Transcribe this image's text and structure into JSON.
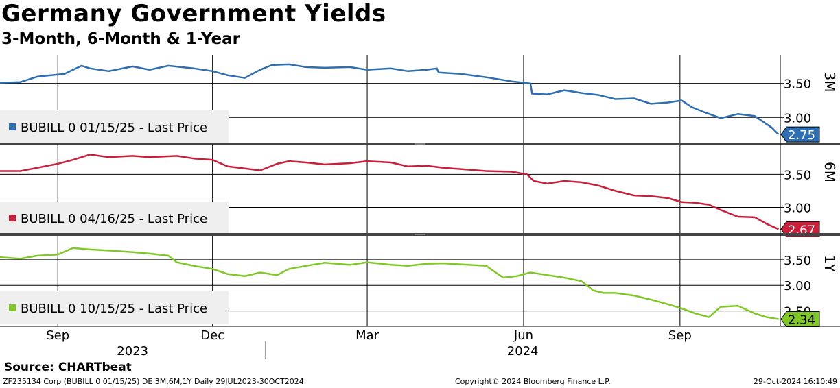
{
  "header": {
    "title": "Germany Government Yields",
    "subtitle": "3-Month, 6-Month & 1-Year"
  },
  "footer": {
    "source": "Source: CHARTbeat",
    "ticker_info": "ZF235134 Corp (BUBILL 0 01/15/25) DE 3M,6M,1Y  Daily 29JUL2023-30OCT2024",
    "copyright": "Copyright© 2024 Bloomberg Finance L.P.",
    "timestamp": "29-Oct-2024 16:10:49"
  },
  "chart_data": {
    "type": "line",
    "x_range": [
      "2023-07-29",
      "2024-10-30"
    ],
    "x_tick_labels": [
      "Sep",
      "Dec",
      "Mar",
      "Jun",
      "Sep"
    ],
    "x_tick_dates": [
      "2023-09-01",
      "2023-12-01",
      "2024-03-01",
      "2024-06-01",
      "2024-09-01"
    ],
    "x_year_labels": [
      "2023",
      "2024"
    ],
    "year_separator_date": "2024-01-01",
    "grid": true,
    "legend_position": "left",
    "panels": [
      {
        "axis_label": "3M",
        "legend": "BUBILL 0 01/15/25 - Last Price",
        "color": "#2f6eb1",
        "last_value": "2.75",
        "yticks": [
          "3.50",
          "3.00"
        ],
        "ytick_values": [
          3.5,
          3.0
        ],
        "ylim": [
          2.62,
          3.92
        ],
        "series": {
          "name": "BUBILL 0 01/15/25 - Last Price",
          "x": [
            "2023-07-29",
            "2023-08-10",
            "2023-08-20",
            "2023-08-28",
            "2023-09-05",
            "2023-09-15",
            "2023-09-20",
            "2023-10-01",
            "2023-10-15",
            "2023-10-25",
            "2023-11-05",
            "2023-11-20",
            "2023-12-01",
            "2023-12-10",
            "2023-12-20",
            "2023-12-29",
            "2024-01-05",
            "2024-01-15",
            "2024-01-25",
            "2024-02-05",
            "2024-02-20",
            "2024-03-01",
            "2024-03-15",
            "2024-03-25",
            "2024-04-05",
            "2024-04-11",
            "2024-04-12",
            "2024-04-25",
            "2024-05-10",
            "2024-05-25",
            "2024-06-05",
            "2024-06-06",
            "2024-06-15",
            "2024-06-25",
            "2024-07-05",
            "2024-07-15",
            "2024-07-25",
            "2024-08-05",
            "2024-08-15",
            "2024-08-25",
            "2024-09-02",
            "2024-09-08",
            "2024-09-15",
            "2024-09-25",
            "2024-10-05",
            "2024-10-15",
            "2024-10-25",
            "2024-10-29"
          ],
          "values": [
            3.51,
            3.52,
            3.6,
            3.62,
            3.64,
            3.76,
            3.72,
            3.68,
            3.75,
            3.7,
            3.76,
            3.72,
            3.68,
            3.62,
            3.58,
            3.7,
            3.77,
            3.78,
            3.74,
            3.73,
            3.74,
            3.7,
            3.72,
            3.68,
            3.7,
            3.72,
            3.66,
            3.64,
            3.59,
            3.53,
            3.5,
            3.35,
            3.34,
            3.4,
            3.36,
            3.33,
            3.27,
            3.28,
            3.2,
            3.22,
            3.25,
            3.15,
            3.08,
            2.99,
            3.05,
            3.02,
            2.85,
            2.75
          ]
        }
      },
      {
        "axis_label": "6M",
        "legend": "BUBILL 0 04/16/25 - Last Price",
        "color": "#c8203a",
        "last_value": "2.67",
        "yticks": [
          "3.50",
          "3.00"
        ],
        "ytick_values": [
          3.5,
          3.0
        ],
        "ylim": [
          2.6,
          3.95
        ],
        "series": {
          "name": "BUBILL 0 04/16/25 - Last Price",
          "x": [
            "2023-07-29",
            "2023-08-10",
            "2023-08-20",
            "2023-09-01",
            "2023-09-10",
            "2023-09-20",
            "2023-10-01",
            "2023-10-15",
            "2023-10-25",
            "2023-11-10",
            "2023-11-20",
            "2023-12-01",
            "2023-12-10",
            "2023-12-20",
            "2023-12-29",
            "2024-01-08",
            "2024-01-15",
            "2024-01-25",
            "2024-02-05",
            "2024-02-20",
            "2024-03-01",
            "2024-03-15",
            "2024-03-25",
            "2024-04-05",
            "2024-04-15",
            "2024-04-25",
            "2024-05-10",
            "2024-05-25",
            "2024-06-03",
            "2024-06-07",
            "2024-06-15",
            "2024-06-25",
            "2024-07-05",
            "2024-07-15",
            "2024-07-25",
            "2024-08-05",
            "2024-08-15",
            "2024-08-25",
            "2024-09-02",
            "2024-09-10",
            "2024-09-18",
            "2024-09-25",
            "2024-10-05",
            "2024-10-15",
            "2024-10-22",
            "2024-10-29"
          ],
          "values": [
            3.55,
            3.55,
            3.6,
            3.66,
            3.72,
            3.8,
            3.76,
            3.78,
            3.76,
            3.78,
            3.74,
            3.72,
            3.62,
            3.59,
            3.56,
            3.66,
            3.7,
            3.68,
            3.65,
            3.67,
            3.7,
            3.68,
            3.62,
            3.63,
            3.6,
            3.58,
            3.55,
            3.54,
            3.5,
            3.4,
            3.36,
            3.4,
            3.38,
            3.33,
            3.25,
            3.18,
            3.17,
            3.14,
            3.08,
            3.07,
            3.04,
            2.96,
            2.86,
            2.85,
            2.75,
            2.67
          ]
        }
      },
      {
        "axis_label": "1Y",
        "legend": "BUBILL 0 10/15/25 - Last Price",
        "color": "#80c828",
        "last_value": "2.34",
        "yticks": [
          "3.50",
          "3.00",
          "2.50"
        ],
        "ytick_values": [
          3.5,
          3.0,
          2.5
        ],
        "ylim": [
          2.2,
          3.98
        ],
        "series": {
          "name": "BUBILL 0 10/15/25 - Last Price",
          "x": [
            "2023-07-29",
            "2023-08-10",
            "2023-08-20",
            "2023-09-01",
            "2023-09-10",
            "2023-09-20",
            "2023-10-01",
            "2023-10-15",
            "2023-10-25",
            "2023-11-05",
            "2023-11-10",
            "2023-11-20",
            "2023-12-01",
            "2023-12-10",
            "2023-12-20",
            "2023-12-29",
            "2024-01-08",
            "2024-01-15",
            "2024-01-25",
            "2024-02-05",
            "2024-02-20",
            "2024-03-01",
            "2024-03-15",
            "2024-03-25",
            "2024-04-05",
            "2024-04-15",
            "2024-04-25",
            "2024-05-10",
            "2024-05-20",
            "2024-05-28",
            "2024-06-05",
            "2024-06-15",
            "2024-06-25",
            "2024-07-05",
            "2024-07-12",
            "2024-07-18",
            "2024-07-25",
            "2024-08-05",
            "2024-08-15",
            "2024-08-25",
            "2024-09-02",
            "2024-09-10",
            "2024-09-18",
            "2024-09-25",
            "2024-10-05",
            "2024-10-15",
            "2024-10-22",
            "2024-10-29"
          ],
          "values": [
            3.55,
            3.52,
            3.58,
            3.6,
            3.73,
            3.7,
            3.68,
            3.65,
            3.62,
            3.58,
            3.45,
            3.38,
            3.32,
            3.22,
            3.18,
            3.25,
            3.2,
            3.32,
            3.38,
            3.44,
            3.4,
            3.45,
            3.4,
            3.38,
            3.42,
            3.43,
            3.41,
            3.38,
            3.15,
            3.18,
            3.25,
            3.2,
            3.15,
            3.08,
            2.9,
            2.85,
            2.85,
            2.8,
            2.72,
            2.63,
            2.55,
            2.45,
            2.38,
            2.58,
            2.6,
            2.45,
            2.38,
            2.34
          ]
        }
      }
    ]
  }
}
